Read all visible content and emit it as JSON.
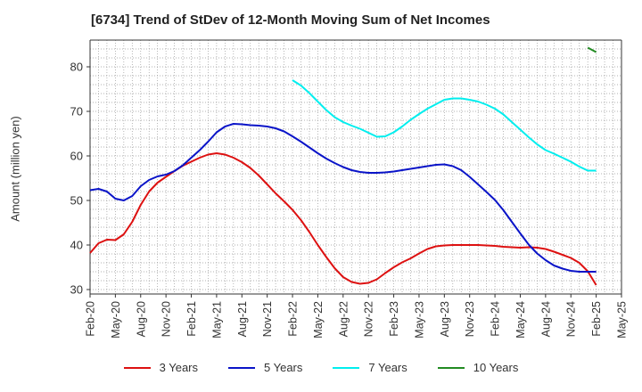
{
  "chart_data": {
    "type": "line",
    "title": "[6734]  Trend of StDev of 12-Month Moving Sum of Net Incomes",
    "ylabel": "Amount (million yen)",
    "xlabel": "",
    "ylim": [
      29,
      86
    ],
    "yticks": [
      30,
      40,
      50,
      60,
      70,
      80
    ],
    "xticks": [
      "Feb-20",
      "May-20",
      "Aug-20",
      "Nov-20",
      "Feb-21",
      "May-21",
      "Aug-21",
      "Nov-21",
      "Feb-22",
      "May-22",
      "Aug-22",
      "Nov-22",
      "Feb-23",
      "May-23",
      "Aug-23",
      "Nov-23",
      "Feb-24",
      "May-24",
      "Aug-24",
      "Nov-24",
      "Feb-25",
      "May-25"
    ],
    "grid": true,
    "legend_position": "bottom",
    "series": [
      {
        "name": "3 Years",
        "color": "#dd1111",
        "x": [
          "Feb-20",
          "Mar-20",
          "Apr-20",
          "May-20",
          "Jun-20",
          "Jul-20",
          "Aug-20",
          "Sep-20",
          "Oct-20",
          "Nov-20",
          "Dec-20",
          "Jan-21",
          "Feb-21",
          "Mar-21",
          "Apr-21",
          "May-21",
          "Jun-21",
          "Jul-21",
          "Aug-21",
          "Sep-21",
          "Oct-21",
          "Nov-21",
          "Dec-21",
          "Jan-22",
          "Feb-22",
          "Mar-22",
          "Apr-22",
          "May-22",
          "Jun-22",
          "Jul-22",
          "Aug-22",
          "Sep-22",
          "Oct-22",
          "Nov-22",
          "Dec-22",
          "Jan-23",
          "Feb-23",
          "Mar-23",
          "Apr-23",
          "May-23",
          "Jun-23",
          "Jul-23",
          "Aug-23",
          "Sep-23",
          "Oct-23",
          "Nov-23",
          "Dec-23",
          "Jan-24",
          "Feb-24",
          "Mar-24",
          "Apr-24",
          "May-24",
          "Jun-24",
          "Jul-24",
          "Aug-24",
          "Sep-24",
          "Oct-24",
          "Nov-24",
          "Dec-24",
          "Jan-25",
          "Feb-25"
        ],
        "values": [
          38.2,
          40.4,
          41.2,
          41.1,
          42.4,
          45.2,
          49.0,
          52.0,
          54.0,
          55.3,
          56.6,
          57.8,
          58.7,
          59.6,
          60.3,
          60.6,
          60.3,
          59.6,
          58.6,
          57.3,
          55.6,
          53.6,
          51.6,
          49.8,
          47.9,
          45.6,
          42.9,
          40.0,
          37.3,
          34.8,
          32.8,
          31.7,
          31.3,
          31.5,
          32.3,
          33.7,
          35.0,
          36.1,
          37.0,
          38.1,
          39.1,
          39.7,
          39.9,
          40.0,
          40.0,
          40.0,
          40.0,
          39.9,
          39.8,
          39.6,
          39.5,
          39.4,
          39.5,
          39.4,
          39.1,
          38.5,
          37.8,
          37.1,
          36.0,
          34.1,
          31.0
        ]
      },
      {
        "name": "5 Years",
        "color": "#0a14c8",
        "x": [
          "Feb-20",
          "Mar-20",
          "Apr-20",
          "May-20",
          "Jun-20",
          "Jul-20",
          "Aug-20",
          "Sep-20",
          "Oct-20",
          "Nov-20",
          "Dec-20",
          "Jan-21",
          "Feb-21",
          "Mar-21",
          "Apr-21",
          "May-21",
          "Jun-21",
          "Jul-21",
          "Aug-21",
          "Sep-21",
          "Oct-21",
          "Nov-21",
          "Dec-21",
          "Jan-22",
          "Feb-22",
          "Mar-22",
          "Apr-22",
          "May-22",
          "Jun-22",
          "Jul-22",
          "Aug-22",
          "Sep-22",
          "Oct-22",
          "Nov-22",
          "Dec-22",
          "Jan-23",
          "Feb-23",
          "Mar-23",
          "Apr-23",
          "May-23",
          "Jun-23",
          "Jul-23",
          "Aug-23",
          "Sep-23",
          "Oct-23",
          "Nov-23",
          "Dec-23",
          "Jan-24",
          "Feb-24",
          "Mar-24",
          "Apr-24",
          "May-24",
          "Jun-24",
          "Jul-24",
          "Aug-24",
          "Sep-24",
          "Oct-24",
          "Nov-24",
          "Dec-24",
          "Jan-25",
          "Feb-25"
        ],
        "values": [
          52.3,
          52.6,
          52.0,
          50.4,
          50.0,
          51.0,
          53.2,
          54.6,
          55.4,
          55.8,
          56.6,
          57.9,
          59.6,
          61.3,
          63.2,
          65.3,
          66.6,
          67.2,
          67.1,
          66.9,
          66.8,
          66.6,
          66.2,
          65.5,
          64.4,
          63.2,
          61.9,
          60.6,
          59.4,
          58.4,
          57.5,
          56.8,
          56.4,
          56.2,
          56.2,
          56.3,
          56.5,
          56.8,
          57.1,
          57.4,
          57.7,
          58.0,
          58.1,
          57.7,
          56.8,
          55.3,
          53.6,
          51.9,
          50.1,
          47.8,
          45.2,
          42.6,
          40.1,
          38.1,
          36.6,
          35.4,
          34.7,
          34.2,
          34.0,
          34.0,
          34.0
        ]
      },
      {
        "name": "7 Years",
        "color": "#00eeee",
        "x": [
          "Feb-22",
          "Mar-22",
          "Apr-22",
          "May-22",
          "Jun-22",
          "Jul-22",
          "Aug-22",
          "Sep-22",
          "Oct-22",
          "Nov-22",
          "Dec-22",
          "Jan-23",
          "Feb-23",
          "Mar-23",
          "Apr-23",
          "May-23",
          "Jun-23",
          "Jul-23",
          "Aug-23",
          "Sep-23",
          "Oct-23",
          "Nov-23",
          "Dec-23",
          "Jan-24",
          "Feb-24",
          "Mar-24",
          "Apr-24",
          "May-24",
          "Jun-24",
          "Jul-24",
          "Aug-24",
          "Sep-24",
          "Oct-24",
          "Nov-24",
          "Dec-24",
          "Jan-25",
          "Feb-25"
        ],
        "values": [
          77.0,
          75.8,
          74.1,
          72.2,
          70.3,
          68.7,
          67.6,
          66.8,
          66.1,
          65.2,
          64.3,
          64.4,
          65.3,
          66.6,
          68.1,
          69.4,
          70.6,
          71.6,
          72.6,
          72.9,
          72.9,
          72.6,
          72.2,
          71.5,
          70.6,
          69.3,
          67.6,
          65.9,
          64.2,
          62.6,
          61.3,
          60.5,
          59.6,
          58.7,
          57.6,
          56.7,
          56.7
        ]
      },
      {
        "name": "10 Years",
        "color": "#228b22",
        "x": [
          "Jan-25",
          "Feb-25"
        ],
        "values": [
          84.3,
          83.3
        ]
      }
    ]
  }
}
